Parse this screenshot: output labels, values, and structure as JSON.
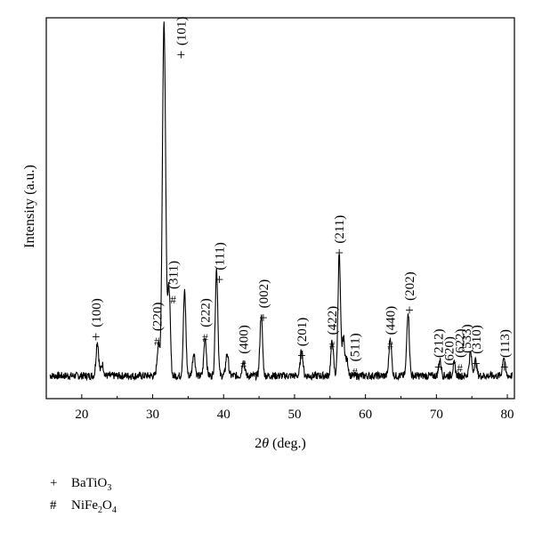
{
  "chart_data": {
    "type": "line",
    "title": "",
    "xlabel_prefix": "2",
    "xlabel_theta": "θ",
    "xlabel_suffix": " (deg.)",
    "ylabel": "Intensity (a.u.)",
    "xlim": [
      15,
      81
    ],
    "ylim": [
      0,
      100
    ],
    "x_ticks": [
      20,
      30,
      40,
      50,
      60,
      70,
      80
    ],
    "y_ticks_shown": false,
    "grid": false,
    "line_color": "#000000",
    "baseline": 6,
    "noise": 1.0,
    "peaks": [
      {
        "x": 22.2,
        "h": 9
      },
      {
        "x": 22.9,
        "h": 3
      },
      {
        "x": 30.8,
        "h": 8
      },
      {
        "x": 31.6,
        "h": 93
      },
      {
        "x": 32.3,
        "h": 23
      },
      {
        "x": 34.5,
        "h": 22
      },
      {
        "x": 35.8,
        "h": 6
      },
      {
        "x": 37.4,
        "h": 10
      },
      {
        "x": 39.0,
        "h": 28
      },
      {
        "x": 40.5,
        "h": 6
      },
      {
        "x": 42.8,
        "h": 4
      },
      {
        "x": 45.3,
        "h": 16
      },
      {
        "x": 51.0,
        "h": 7
      },
      {
        "x": 55.3,
        "h": 9
      },
      {
        "x": 56.3,
        "h": 32
      },
      {
        "x": 56.9,
        "h": 10
      },
      {
        "x": 57.4,
        "h": 4
      },
      {
        "x": 63.5,
        "h": 10
      },
      {
        "x": 66.0,
        "h": 17
      },
      {
        "x": 70.5,
        "h": 4
      },
      {
        "x": 72.5,
        "h": 3
      },
      {
        "x": 74.8,
        "h": 6
      },
      {
        "x": 75.5,
        "h": 4
      },
      {
        "x": 79.5,
        "h": 5
      }
    ],
    "annotations": [
      {
        "x": 34.0,
        "y": 89,
        "marker": "+",
        "label": "(101)"
      },
      {
        "x": 32.9,
        "y": 25,
        "marker": "#",
        "label": "(311)"
      },
      {
        "x": 30.6,
        "y": 14,
        "marker": "#",
        "label": "(220)"
      },
      {
        "x": 22.0,
        "y": 15,
        "marker": "+",
        "label": "(100)"
      },
      {
        "x": 37.4,
        "y": 15,
        "marker": "#",
        "label": "(222)"
      },
      {
        "x": 39.4,
        "y": 30,
        "marker": "+",
        "label": "(111)"
      },
      {
        "x": 42.8,
        "y": 8,
        "marker": "#",
        "label": "(400)"
      },
      {
        "x": 45.6,
        "y": 20,
        "marker": "+",
        "label": "(002)"
      },
      {
        "x": 51.0,
        "y": 10,
        "marker": "+",
        "label": "(201)"
      },
      {
        "x": 55.3,
        "y": 13,
        "marker": "#",
        "label": "(422)"
      },
      {
        "x": 56.3,
        "y": 37,
        "marker": "+",
        "label": "(211)"
      },
      {
        "x": 58.5,
        "y": 6,
        "marker": "#",
        "label": "(511)"
      },
      {
        "x": 63.5,
        "y": 13,
        "marker": "#",
        "label": "(440)"
      },
      {
        "x": 66.2,
        "y": 22,
        "marker": "+",
        "label": "(202)"
      },
      {
        "x": 70.3,
        "y": 7,
        "marker": "+",
        "label": "(212)"
      },
      {
        "x": 71.8,
        "y": 5,
        "marker": "#",
        "label": "(620)"
      },
      {
        "x": 73.3,
        "y": 7,
        "marker": "#",
        "label": "(622)"
      },
      {
        "x": 74.2,
        "y": 11,
        "marker": "",
        "label": "(533)"
      },
      {
        "x": 75.6,
        "y": 8,
        "marker": "+",
        "label": "(310)"
      },
      {
        "x": 79.6,
        "y": 7,
        "marker": "+",
        "label": "(113)"
      }
    ]
  },
  "legend": [
    {
      "symbol": "+",
      "main": "BaTiO",
      "sub": "3",
      "rest": ""
    },
    {
      "symbol": "#",
      "main": "NiFe",
      "sub": "2",
      "rest": "O",
      "sub2": "4"
    }
  ]
}
